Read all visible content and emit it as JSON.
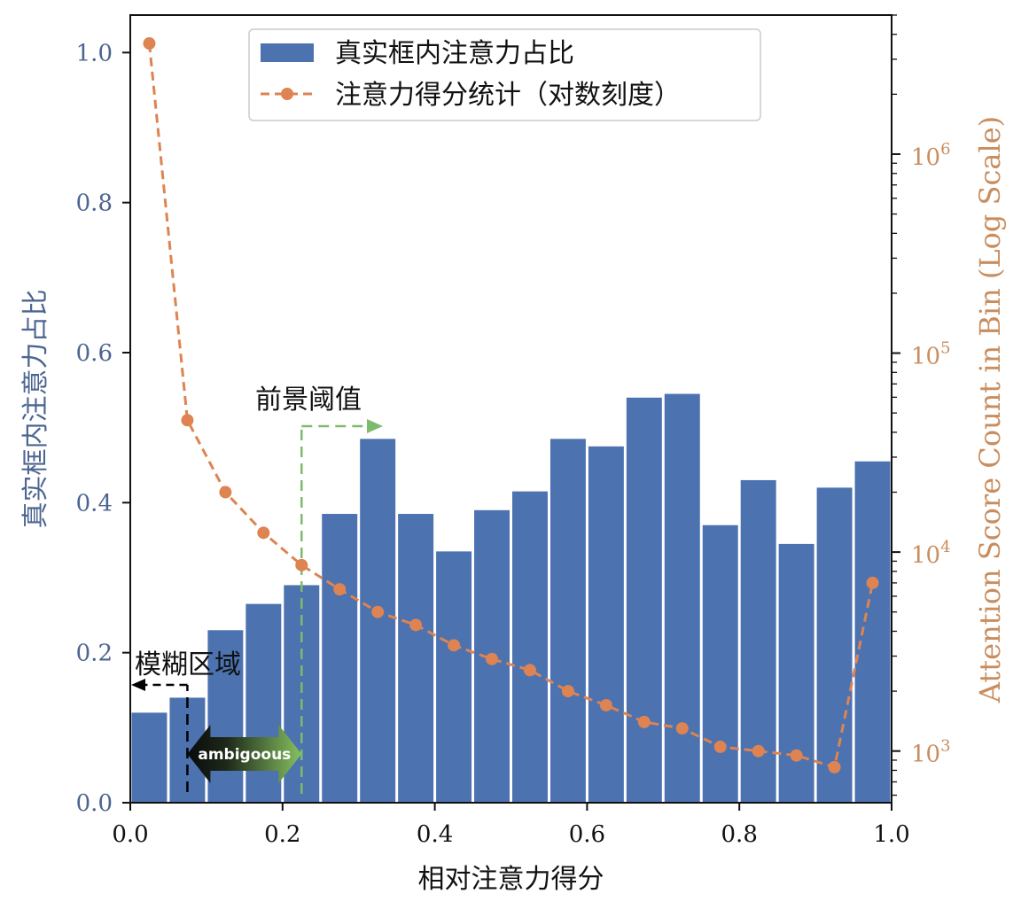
{
  "chart_data": {
    "type": "bar",
    "title": "",
    "xlabel": "相对注意力得分",
    "ylabel_left": "真实框内注意力占比",
    "ylabel_right": "Attention Score Count in Bin (Log Scale)",
    "xlim": [
      0.0,
      1.0
    ],
    "ylim_left": [
      0.0,
      1.05
    ],
    "ylim_right_log": [
      550,
      5000000
    ],
    "right_axis_scale": "log",
    "grid": false,
    "legend_position": "top-center",
    "x_ticks": [
      "0.0",
      "0.2",
      "0.4",
      "0.6",
      "0.8",
      "1.0"
    ],
    "x_tick_values": [
      0.0,
      0.2,
      0.4,
      0.6,
      0.8,
      1.0
    ],
    "y_left_ticks": [
      "0.0",
      "0.2",
      "0.4",
      "0.6",
      "0.8",
      "1.0"
    ],
    "y_left_tick_values": [
      0.0,
      0.2,
      0.4,
      0.6,
      0.8,
      1.0
    ],
    "y_right_major_ticks": [
      1000,
      10000,
      100000,
      1000000
    ],
    "y_right_tick_labels": [
      {
        "base": "10",
        "exp": "3"
      },
      {
        "base": "10",
        "exp": "4"
      },
      {
        "base": "10",
        "exp": "5"
      },
      {
        "base": "10",
        "exp": "6"
      }
    ],
    "bin_edges": [
      0.0,
      0.05,
      0.1,
      0.15,
      0.2,
      0.25,
      0.3,
      0.35,
      0.4,
      0.45,
      0.5,
      0.55,
      0.6,
      0.65,
      0.7,
      0.75,
      0.8,
      0.85,
      0.9,
      0.95,
      1.0
    ],
    "series": [
      {
        "name": "真实框内注意力占比",
        "type": "bar",
        "axis": "left",
        "color": "#4c72b0",
        "values": [
          0.12,
          0.14,
          0.23,
          0.265,
          0.29,
          0.385,
          0.485,
          0.385,
          0.335,
          0.39,
          0.415,
          0.485,
          0.475,
          0.54,
          0.545,
          0.37,
          0.43,
          0.345,
          0.42,
          0.455
        ]
      },
      {
        "name": "注意力得分统计（对数刻度）",
        "type": "line",
        "axis": "right",
        "color": "#dd8452",
        "style": "dashed",
        "marker": "circle",
        "x": [
          0.025,
          0.075,
          0.125,
          0.175,
          0.225,
          0.275,
          0.325,
          0.375,
          0.425,
          0.475,
          0.525,
          0.575,
          0.625,
          0.675,
          0.725,
          0.775,
          0.825,
          0.875,
          0.925,
          0.975
        ],
        "values": [
          3600000,
          46000,
          20000,
          12500,
          8600,
          6500,
          5000,
          4300,
          3400,
          2900,
          2550,
          2000,
          1700,
          1400,
          1300,
          1050,
          1000,
          950,
          830,
          7000
        ]
      }
    ],
    "annotations": [
      {
        "text": "前景阈值",
        "x": 0.225,
        "color": "#7dbb6c"
      },
      {
        "text": "模糊区域",
        "x": 0.075,
        "color": "#000000"
      },
      {
        "text": "ambigoous",
        "x_from": 0.075,
        "x_to": 0.225
      }
    ]
  },
  "colors": {
    "bar": "#4c72b0",
    "line": "#dd8452",
    "left_axis_label": "#4c6590",
    "right_axis_label": "#c98d5e",
    "threshold": "#7dbb6c",
    "ambig_dark": "#111111",
    "ambig_light": "#7fb85a"
  }
}
